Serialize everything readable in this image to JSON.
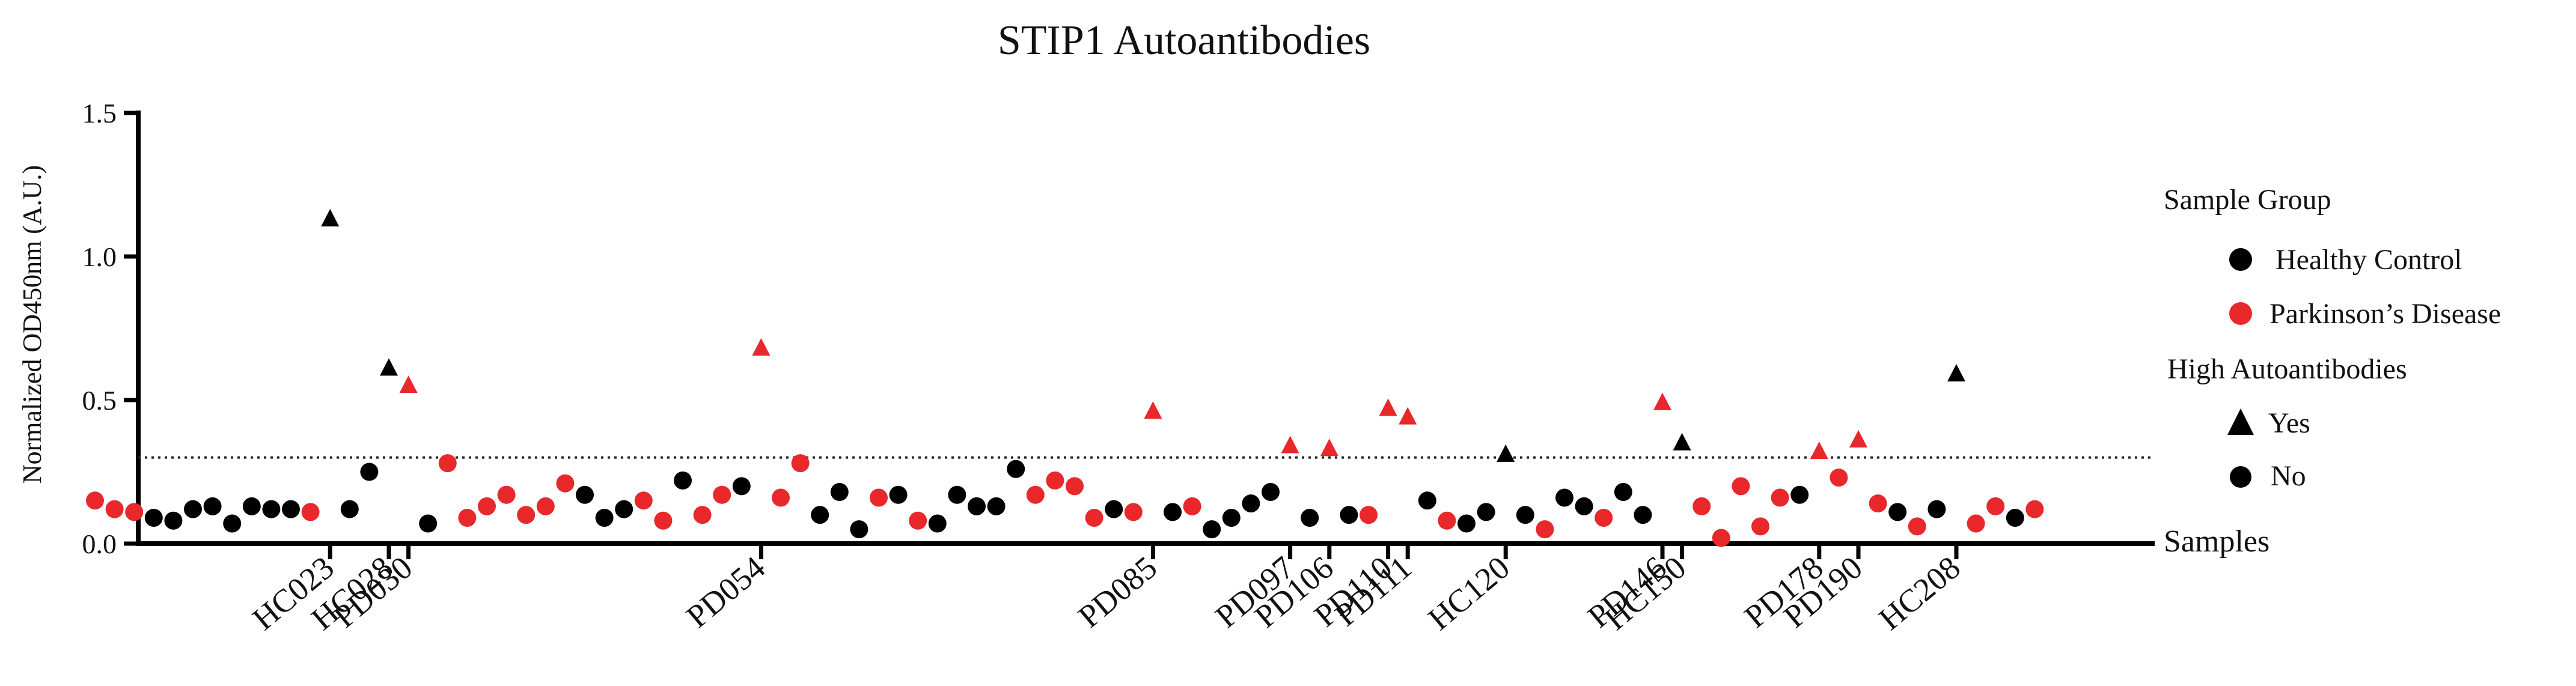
{
  "chart_data": {
    "type": "scatter",
    "title": "STIP1 Autoantibodies",
    "ylabel": "Normalized OD450nm (A.U.)",
    "xlabel": "Samples",
    "ylim": [
      0,
      1.5
    ],
    "yticks": [
      "0.0",
      "0.5",
      "1.0",
      "1.5"
    ],
    "threshold": 0.3,
    "legend": {
      "group_title": "Sample Group",
      "groups": [
        {
          "label": "Healthy Control",
          "color": "#000000"
        },
        {
          "label": "Parkinson’s Disease",
          "color": "#e8282b"
        }
      ],
      "high_title": "High Autoantibodies",
      "high": [
        {
          "label": "Yes",
          "shape": "triangle"
        },
        {
          "label": "No",
          "shape": "circle"
        }
      ],
      "placement": "right"
    },
    "points": [
      {
        "g": "PD",
        "y": 0.15,
        "h": false
      },
      {
        "g": "PD",
        "y": 0.12,
        "h": false
      },
      {
        "g": "PD",
        "y": 0.11,
        "h": false
      },
      {
        "g": "HC",
        "y": 0.09,
        "h": false
      },
      {
        "g": "HC",
        "y": 0.08,
        "h": false
      },
      {
        "g": "HC",
        "y": 0.12,
        "h": false
      },
      {
        "g": "HC",
        "y": 0.13,
        "h": false
      },
      {
        "g": "HC",
        "y": 0.07,
        "h": false
      },
      {
        "g": "HC",
        "y": 0.13,
        "h": false
      },
      {
        "g": "HC",
        "y": 0.12,
        "h": false
      },
      {
        "g": "HC",
        "y": 0.12,
        "h": false
      },
      {
        "g": "PD",
        "y": 0.11,
        "h": false
      },
      {
        "g": "HC",
        "y": 1.13,
        "h": true,
        "label": "HC023"
      },
      {
        "g": "HC",
        "y": 0.12,
        "h": false
      },
      {
        "g": "HC",
        "y": 0.25,
        "h": false
      },
      {
        "g": "HC",
        "y": 0.61,
        "h": true,
        "label": "HC028"
      },
      {
        "g": "PD",
        "y": 0.55,
        "h": true,
        "label": "PD030"
      },
      {
        "g": "HC",
        "y": 0.07,
        "h": false
      },
      {
        "g": "PD",
        "y": 0.28,
        "h": false
      },
      {
        "g": "PD",
        "y": 0.09,
        "h": false
      },
      {
        "g": "PD",
        "y": 0.13,
        "h": false
      },
      {
        "g": "PD",
        "y": 0.17,
        "h": false
      },
      {
        "g": "PD",
        "y": 0.1,
        "h": false
      },
      {
        "g": "PD",
        "y": 0.13,
        "h": false
      },
      {
        "g": "PD",
        "y": 0.21,
        "h": false
      },
      {
        "g": "HC",
        "y": 0.17,
        "h": false
      },
      {
        "g": "HC",
        "y": 0.09,
        "h": false
      },
      {
        "g": "HC",
        "y": 0.12,
        "h": false
      },
      {
        "g": "PD",
        "y": 0.15,
        "h": false
      },
      {
        "g": "PD",
        "y": 0.08,
        "h": false
      },
      {
        "g": "HC",
        "y": 0.22,
        "h": false
      },
      {
        "g": "PD",
        "y": 0.1,
        "h": false
      },
      {
        "g": "PD",
        "y": 0.17,
        "h": false
      },
      {
        "g": "HC",
        "y": 0.2,
        "h": false
      },
      {
        "g": "PD",
        "y": 0.68,
        "h": true,
        "label": "PD054"
      },
      {
        "g": "PD",
        "y": 0.16,
        "h": false
      },
      {
        "g": "PD",
        "y": 0.28,
        "h": false
      },
      {
        "g": "HC",
        "y": 0.1,
        "h": false
      },
      {
        "g": "HC",
        "y": 0.18,
        "h": false
      },
      {
        "g": "HC",
        "y": 0.05,
        "h": false
      },
      {
        "g": "PD",
        "y": 0.16,
        "h": false
      },
      {
        "g": "HC",
        "y": 0.17,
        "h": false
      },
      {
        "g": "PD",
        "y": 0.08,
        "h": false
      },
      {
        "g": "HC",
        "y": 0.07,
        "h": false
      },
      {
        "g": "HC",
        "y": 0.17,
        "h": false
      },
      {
        "g": "HC",
        "y": 0.13,
        "h": false
      },
      {
        "g": "HC",
        "y": 0.13,
        "h": false
      },
      {
        "g": "HC",
        "y": 0.26,
        "h": false
      },
      {
        "g": "PD",
        "y": 0.17,
        "h": false
      },
      {
        "g": "PD",
        "y": 0.22,
        "h": false
      },
      {
        "g": "PD",
        "y": 0.2,
        "h": false
      },
      {
        "g": "PD",
        "y": 0.09,
        "h": false
      },
      {
        "g": "HC",
        "y": 0.12,
        "h": false
      },
      {
        "g": "PD",
        "y": 0.11,
        "h": false
      },
      {
        "g": "PD",
        "y": 0.46,
        "h": true,
        "label": "PD085"
      },
      {
        "g": "HC",
        "y": 0.11,
        "h": false
      },
      {
        "g": "PD",
        "y": 0.13,
        "h": false
      },
      {
        "g": "HC",
        "y": 0.05,
        "h": false
      },
      {
        "g": "HC",
        "y": 0.09,
        "h": false
      },
      {
        "g": "HC",
        "y": 0.14,
        "h": false
      },
      {
        "g": "HC",
        "y": 0.18,
        "h": false
      },
      {
        "g": "PD",
        "y": 0.34,
        "h": true,
        "label": "PD097"
      },
      {
        "g": "HC",
        "y": 0.09,
        "h": false
      },
      {
        "g": "PD",
        "y": 0.33,
        "h": true,
        "label": "PD106"
      },
      {
        "g": "HC",
        "y": 0.1,
        "h": false
      },
      {
        "g": "PD",
        "y": 0.1,
        "h": false
      },
      {
        "g": "PD",
        "y": 0.47,
        "h": true,
        "label": "PD110"
      },
      {
        "g": "PD",
        "y": 0.44,
        "h": true,
        "label": "PD111"
      },
      {
        "g": "HC",
        "y": 0.15,
        "h": false
      },
      {
        "g": "PD",
        "y": 0.08,
        "h": false
      },
      {
        "g": "HC",
        "y": 0.07,
        "h": false
      },
      {
        "g": "HC",
        "y": 0.11,
        "h": false
      },
      {
        "g": "HC",
        "y": 0.31,
        "h": true,
        "label": "HC120"
      },
      {
        "g": "HC",
        "y": 0.1,
        "h": false
      },
      {
        "g": "PD",
        "y": 0.05,
        "h": false
      },
      {
        "g": "HC",
        "y": 0.16,
        "h": false
      },
      {
        "g": "HC",
        "y": 0.13,
        "h": false
      },
      {
        "g": "PD",
        "y": 0.09,
        "h": false
      },
      {
        "g": "HC",
        "y": 0.18,
        "h": false
      },
      {
        "g": "HC",
        "y": 0.1,
        "h": false
      },
      {
        "g": "PD",
        "y": 0.49,
        "h": true,
        "label": "PD146"
      },
      {
        "g": "HC",
        "y": 0.35,
        "h": true,
        "label": "HC150"
      },
      {
        "g": "PD",
        "y": 0.13,
        "h": false
      },
      {
        "g": "PD",
        "y": 0.02,
        "h": false
      },
      {
        "g": "PD",
        "y": 0.2,
        "h": false
      },
      {
        "g": "PD",
        "y": 0.06,
        "h": false
      },
      {
        "g": "PD",
        "y": 0.16,
        "h": false
      },
      {
        "g": "HC",
        "y": 0.17,
        "h": false
      },
      {
        "g": "PD",
        "y": 0.32,
        "h": true,
        "label": "PD178"
      },
      {
        "g": "PD",
        "y": 0.23,
        "h": false
      },
      {
        "g": "PD",
        "y": 0.36,
        "h": true,
        "label": "PD190"
      },
      {
        "g": "PD",
        "y": 0.14,
        "h": false
      },
      {
        "g": "HC",
        "y": 0.11,
        "h": false
      },
      {
        "g": "PD",
        "y": 0.06,
        "h": false
      },
      {
        "g": "HC",
        "y": 0.12,
        "h": false
      },
      {
        "g": "HC",
        "y": 0.59,
        "h": true,
        "label": "HC208"
      },
      {
        "g": "PD",
        "y": 0.07,
        "h": false
      },
      {
        "g": "PD",
        "y": 0.13,
        "h": false
      },
      {
        "g": "HC",
        "y": 0.09,
        "h": false
      },
      {
        "g": "PD",
        "y": 0.12,
        "h": false
      }
    ]
  }
}
